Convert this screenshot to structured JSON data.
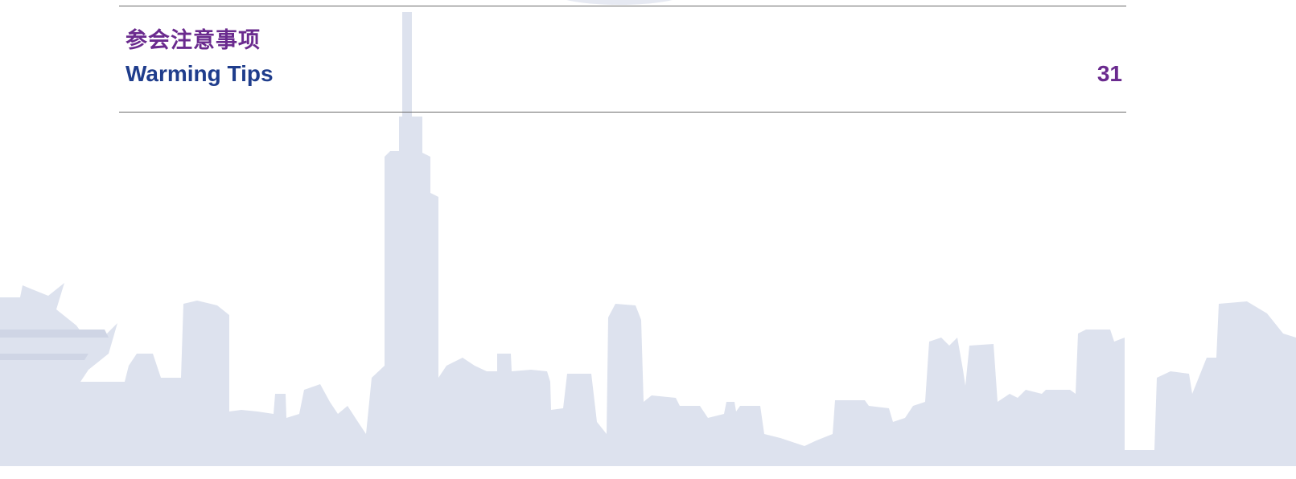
{
  "header": {
    "title": "参会注意事项",
    "subtitle": "Warming Tips",
    "page_number": "31"
  }
}
